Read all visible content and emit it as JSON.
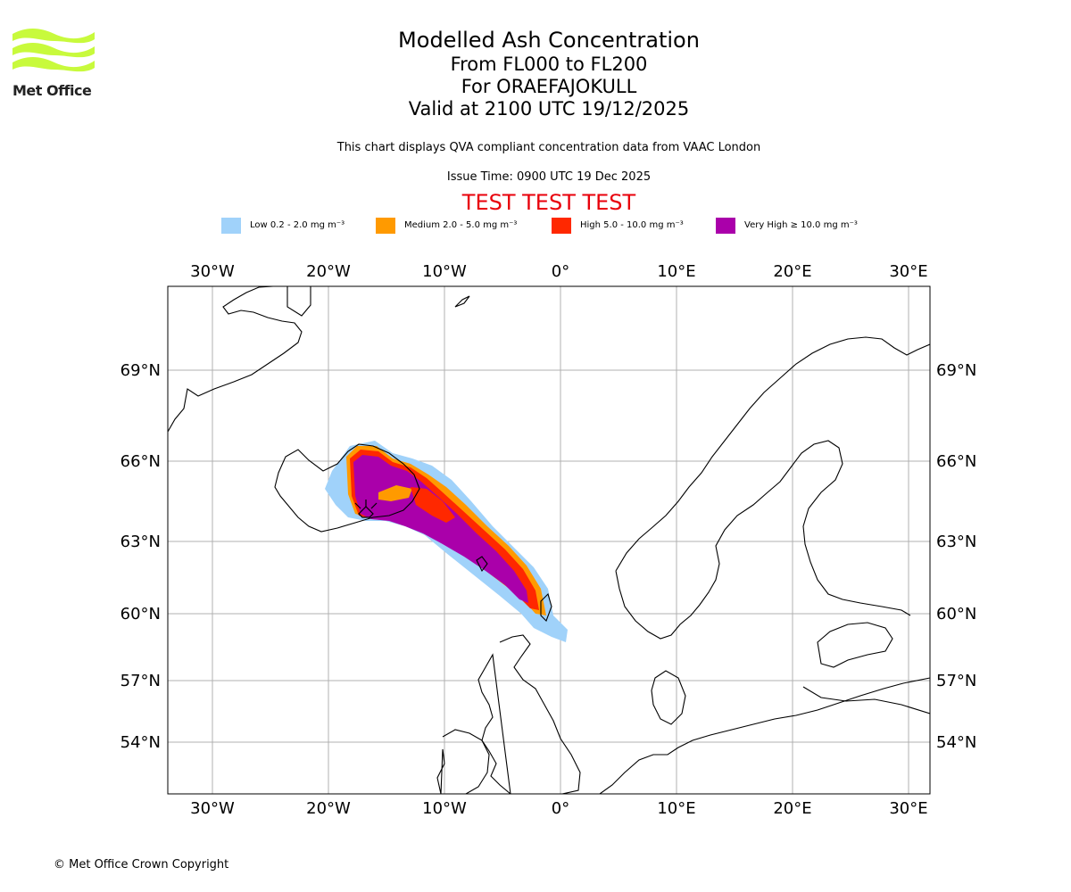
{
  "logo": {
    "text": "Met Office",
    "color": "#c8fa3c"
  },
  "title": {
    "main": "Modelled Ash Concentration",
    "levels": "From FL000 to FL200",
    "volcano": "For ORAEFAJOKULL",
    "valid": "Valid at 2100 UTC 19/12/2025"
  },
  "subtitle": "This chart displays QVA compliant concentration data from VAAC London",
  "issue_time": "Issue Time: 0900 UTC 19 Dec 2025",
  "test_banner": "TEST TEST TEST",
  "legend": [
    {
      "label": "Low 0.2 - 2.0 mg m⁻³",
      "color": "#a0d2fa"
    },
    {
      "label": "Medium 2.0 - 5.0 mg m⁻³",
      "color": "#ff9a00"
    },
    {
      "label": "High 5.0 - 10.0 mg m⁻³",
      "color": "#ff2800"
    },
    {
      "label": "Very High ≥ 10.0 mg m⁻³",
      "color": "#aa00aa"
    }
  ],
  "axes": {
    "longitudes": [
      "30°W",
      "20°W",
      "10°W",
      "0°",
      "10°E",
      "20°E",
      "30°E"
    ],
    "latitudes": [
      "69°N",
      "66°N",
      "63°N",
      "60°N",
      "57°N",
      "54°N"
    ]
  },
  "copyright": "© Met Office Crown Copyright"
}
